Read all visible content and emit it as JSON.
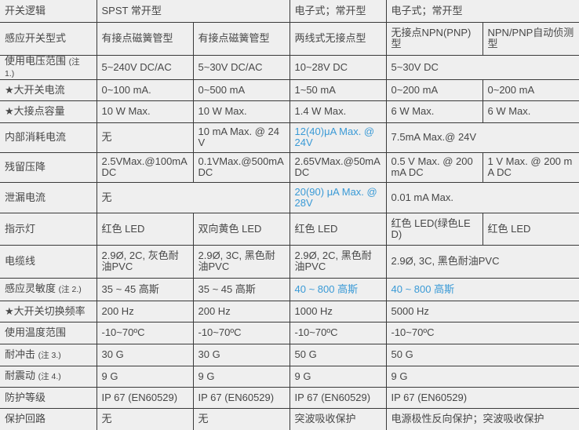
{
  "colors": {
    "text": "#474747",
    "highlight": "#3a9ad6",
    "background": "#efefef",
    "border": "#3a3a3a"
  },
  "rows": [
    {
      "label": "开关逻辑",
      "cells": [
        {
          "text": "SPST 常开型",
          "span": 2
        },
        {
          "text": "电子式；常开型",
          "span": 1
        },
        {
          "text": "电子式；常开型",
          "span": 2
        }
      ]
    },
    {
      "label": "感应开关型式",
      "cells": [
        {
          "text": "有接点磁簧管型"
        },
        {
          "text": "有接点磁簧管型"
        },
        {
          "text": "两线式无接点型"
        },
        {
          "text": "无接点NPN(PNP)型"
        },
        {
          "text": "NPN/PNP自动侦测型"
        }
      ]
    },
    {
      "label": "使用电压范围",
      "note": "(注 1.)",
      "cells": [
        {
          "text": "5~240V DC/AC"
        },
        {
          "text": "5~30V DC/AC"
        },
        {
          "text": "10~28V DC"
        },
        {
          "text": "5~30V DC",
          "span": 2
        }
      ]
    },
    {
      "label": "★大开关电流",
      "cells": [
        {
          "text": "0~100 mA."
        },
        {
          "text": "0~500 mA"
        },
        {
          "text": "1~50 mA"
        },
        {
          "text": "0~200 mA"
        },
        {
          "text": "0~200 mA"
        }
      ]
    },
    {
      "label": "★大接点容量",
      "cells": [
        {
          "text": "10 W Max."
        },
        {
          "text": "10 W Max."
        },
        {
          "text": "1.4 W Max."
        },
        {
          "text": "6 W Max."
        },
        {
          "text": "6 W Max."
        }
      ]
    },
    {
      "label": "内部消耗电流",
      "cells": [
        {
          "text": "无"
        },
        {
          "text": "10 mA Max. @ 24V"
        },
        {
          "text": "12(40)μA Max. @ 24V",
          "blue": true
        },
        {
          "text": "7.5mA Max.@ 24V",
          "span": 2
        }
      ]
    },
    {
      "label": "残留压降",
      "cells": [
        {
          "text": "2.5VMax.@100mA DC"
        },
        {
          "text": "0.1VMax.@500mA DC"
        },
        {
          "text": "2.65VMax.@50mA DC"
        },
        {
          "text": "0.5 V Max. @ 200 mA DC"
        },
        {
          "text": "1 V Max. @ 200 mA DC"
        }
      ]
    },
    {
      "label": "泄漏电流",
      "cells": [
        {
          "text": "无",
          "span": 2
        },
        {
          "text": "20(90) μA Max. @ 28V",
          "blue": true
        },
        {
          "text": "0.01 mA Max.",
          "span": 2
        }
      ]
    },
    {
      "label": "指示灯",
      "cells": [
        {
          "text": "红色  LED"
        },
        {
          "text": "双向黄色  LED"
        },
        {
          "text": "红色  LED"
        },
        {
          "text": "红色  LED(绿色LED)"
        },
        {
          "text": "红色  LED"
        }
      ]
    },
    {
      "label": "电缆线",
      "cells": [
        {
          "text": "2.9Ø, 2C, 灰色耐油PVC"
        },
        {
          "text": "2.9Ø, 3C, 黑色耐油PVC"
        },
        {
          "text": "2.9Ø,  2C,  黑色耐油PVC"
        },
        {
          "text": "2.9Ø, 3C, 黑色耐油PVC",
          "span": 2
        }
      ]
    },
    {
      "label": "感应灵敏度",
      "note": "(注 2.)",
      "cells": [
        {
          "text": "35 ~ 45 高斯"
        },
        {
          "text": "35 ~ 45 高斯"
        },
        {
          "text": "40 ~ 800 高斯",
          "blue": true
        },
        {
          "text": "40 ~ 800 高斯",
          "span": 2,
          "blue": true
        }
      ]
    },
    {
      "label": "★大开关切换频率",
      "cells": [
        {
          "text": "200 Hz"
        },
        {
          "text": "200 Hz"
        },
        {
          "text": "1000 Hz"
        },
        {
          "text": "5000 Hz",
          "span": 2
        }
      ]
    },
    {
      "label": "使用温度范围",
      "cells": [
        {
          "text": "-10~70ºC"
        },
        {
          "text": "-10~70ºC"
        },
        {
          "text": "-10~70ºC"
        },
        {
          "text": "-10~70ºC",
          "span": 2
        }
      ]
    },
    {
      "label": "耐冲击",
      "note": "(注 3.)",
      "cells": [
        {
          "text": "30 G"
        },
        {
          "text": "30 G"
        },
        {
          "text": "50 G"
        },
        {
          "text": "50 G",
          "span": 2
        }
      ]
    },
    {
      "label": "耐震动",
      "note": "(注 4.)",
      "cells": [
        {
          "text": "9 G"
        },
        {
          "text": "9 G"
        },
        {
          "text": "9 G"
        },
        {
          "text": "9 G",
          "span": 2
        }
      ]
    },
    {
      "label": "防护等级",
      "cells": [
        {
          "text": "IP 67 (EN60529)"
        },
        {
          "text": "IP 67 (EN60529)"
        },
        {
          "text": "IP 67 (EN60529)"
        },
        {
          "text": "IP 67 (EN60529)",
          "span": 2
        }
      ]
    },
    {
      "label": "保护回路",
      "cells": [
        {
          "text": "无"
        },
        {
          "text": "无"
        },
        {
          "text": "突波吸收保护"
        },
        {
          "text": "电源极性反向保护；突波吸收保护",
          "span": 2
        }
      ]
    }
  ]
}
